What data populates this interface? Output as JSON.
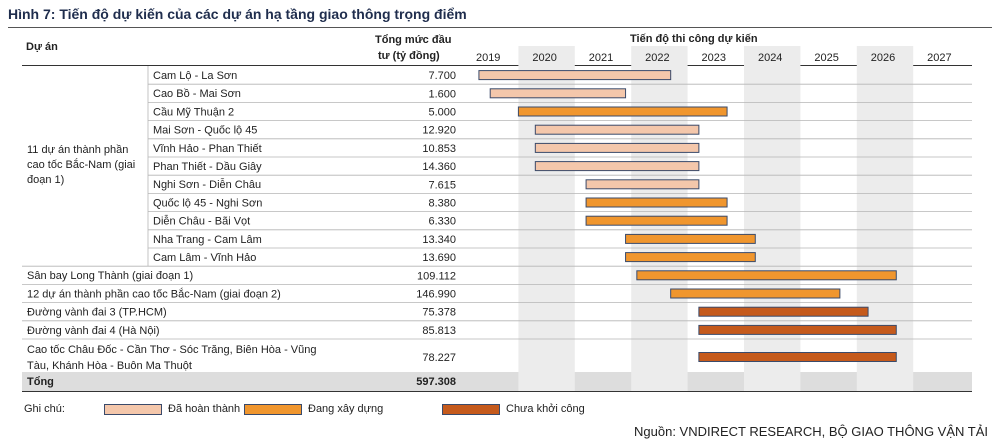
{
  "title": "Hình 7: Tiến độ dự kiến của các dự án hạ tầng giao thông trọng điểm",
  "headers": {
    "project": "Dự án",
    "investment_line1": "Tổng mức đầu",
    "investment_line2": "tư (tỷ đồng)",
    "timeline": "Tiến độ thi công dự kiến"
  },
  "group_label": [
    "11 dự án thành phần",
    "cao tốc Bắc-Nam (giai",
    "đoạn 1)"
  ],
  "total": {
    "label": "Tổng",
    "value": "597.308"
  },
  "legend": {
    "title": "Ghi chú:"
  },
  "source": "Nguồn: VNDIRECT RESEARCH, BỘ GIAO THÔNG VẬN TẢI",
  "chart_data": {
    "type": "gantt",
    "xlabel": "Tiến độ thi công dự kiến",
    "x_ticks": [
      "2019",
      "2020",
      "2021",
      "2022",
      "2023",
      "2024",
      "2025",
      "2026",
      "2027"
    ],
    "xlim": [
      2019,
      2028
    ],
    "status_colors": {
      "done": "#f4c7ab",
      "building": "#f0962e",
      "not_started": "#c55a1c"
    },
    "statuses": [
      {
        "key": "done",
        "name": "Đã hoàn thành"
      },
      {
        "key": "building",
        "name": "Đang xây dựng"
      },
      {
        "key": "not_started",
        "name": "Chưa khởi công"
      }
    ],
    "rows": [
      {
        "name": "Cam Lộ - La Sơn",
        "value": "7.700",
        "group": true,
        "start": 2019.3,
        "end": 2022.7,
        "status": "done"
      },
      {
        "name": "Cao Bồ - Mai Sơn",
        "value": "1.600",
        "group": true,
        "start": 2019.5,
        "end": 2021.9,
        "status": "done"
      },
      {
        "name": "Cầu Mỹ Thuận 2",
        "value": "5.000",
        "group": true,
        "start": 2020.0,
        "end": 2023.7,
        "status": "building"
      },
      {
        "name": "Mai Sơn - Quốc lộ 45",
        "value": "12.920",
        "group": true,
        "start": 2020.3,
        "end": 2023.2,
        "status": "done"
      },
      {
        "name": "Vĩnh Hảo - Phan Thiết",
        "value": "10.853",
        "group": true,
        "start": 2020.3,
        "end": 2023.2,
        "status": "done"
      },
      {
        "name": "Phan Thiết - Dầu Giây",
        "value": "14.360",
        "group": true,
        "start": 2020.3,
        "end": 2023.2,
        "status": "done"
      },
      {
        "name": "Nghi Sơn - Diễn Châu",
        "value": "7.615",
        "group": true,
        "start": 2021.2,
        "end": 2023.2,
        "status": "done"
      },
      {
        "name": "Quốc lộ 45 - Nghi Sơn",
        "value": "8.380",
        "group": true,
        "start": 2021.2,
        "end": 2023.7,
        "status": "building"
      },
      {
        "name": "Diễn Châu - Bãi Vọt",
        "value": "6.330",
        "group": true,
        "start": 2021.2,
        "end": 2023.7,
        "status": "building"
      },
      {
        "name": "Nha Trang - Cam Lâm",
        "value": "13.340",
        "group": true,
        "start": 2021.9,
        "end": 2024.2,
        "status": "building"
      },
      {
        "name": "Cam Lâm - Vĩnh Hảo",
        "value": "13.690",
        "group": true,
        "start": 2021.9,
        "end": 2024.2,
        "status": "building"
      },
      {
        "name": "Sân bay Long Thành (giai đoạn 1)",
        "value": "109.112",
        "group": false,
        "start": 2022.1,
        "end": 2026.7,
        "status": "building"
      },
      {
        "name": "12 dự án thành phần cao tốc Bắc-Nam (giai đoạn 2)",
        "value": "146.990",
        "group": false,
        "start": 2022.7,
        "end": 2025.7,
        "status": "building"
      },
      {
        "name": "Đường vành đai 3 (TP.HCM)",
        "value": "75.378",
        "group": false,
        "start": 2023.2,
        "end": 2026.2,
        "status": "not_started"
      },
      {
        "name": "Đường vành đai 4 (Hà Nội)",
        "value": "85.813",
        "group": false,
        "start": 2023.2,
        "end": 2026.7,
        "status": "not_started"
      },
      {
        "name": "Cao tốc Châu Đốc - Cần Thơ - Sóc Trăng, Biên Hòa - Vũng",
        "name2": "Tàu, Khánh Hòa - Buôn Ma Thuột",
        "value": "78.227",
        "group": false,
        "start": 2023.2,
        "end": 2026.7,
        "status": "not_started"
      }
    ]
  }
}
